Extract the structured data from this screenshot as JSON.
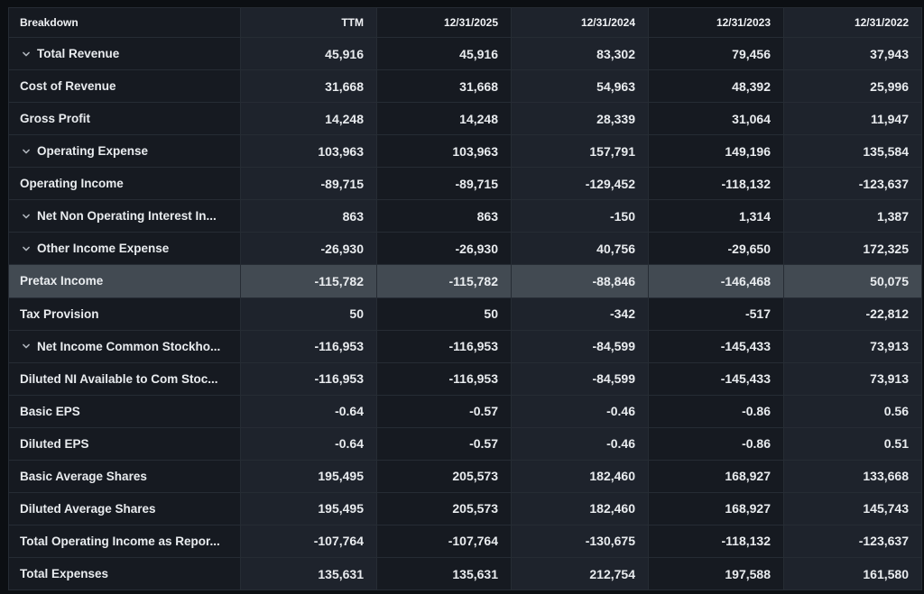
{
  "table": {
    "columns": [
      {
        "label": "Breakdown"
      },
      {
        "label": "TTM"
      },
      {
        "label": "12/31/2025"
      },
      {
        "label": "12/31/2024"
      },
      {
        "label": "12/31/2023"
      },
      {
        "label": "12/31/2022"
      }
    ],
    "rows": [
      {
        "label": "Total Revenue",
        "expandable": true,
        "highlighted": false,
        "values": [
          "45,916",
          "45,916",
          "83,302",
          "79,456",
          "37,943"
        ]
      },
      {
        "label": "Cost of Revenue",
        "expandable": false,
        "highlighted": false,
        "values": [
          "31,668",
          "31,668",
          "54,963",
          "48,392",
          "25,996"
        ]
      },
      {
        "label": "Gross Profit",
        "expandable": false,
        "highlighted": false,
        "values": [
          "14,248",
          "14,248",
          "28,339",
          "31,064",
          "11,947"
        ]
      },
      {
        "label": "Operating Expense",
        "expandable": true,
        "highlighted": false,
        "values": [
          "103,963",
          "103,963",
          "157,791",
          "149,196",
          "135,584"
        ]
      },
      {
        "label": "Operating Income",
        "expandable": false,
        "highlighted": false,
        "values": [
          "-89,715",
          "-89,715",
          "-129,452",
          "-118,132",
          "-123,637"
        ]
      },
      {
        "label": "Net Non Operating Interest In...",
        "expandable": true,
        "highlighted": false,
        "values": [
          "863",
          "863",
          "-150",
          "1,314",
          "1,387"
        ]
      },
      {
        "label": "Other Income Expense",
        "expandable": true,
        "highlighted": false,
        "values": [
          "-26,930",
          "-26,930",
          "40,756",
          "-29,650",
          "172,325"
        ]
      },
      {
        "label": "Pretax Income",
        "expandable": false,
        "highlighted": true,
        "values": [
          "-115,782",
          "-115,782",
          "-88,846",
          "-146,468",
          "50,075"
        ]
      },
      {
        "label": "Tax Provision",
        "expandable": false,
        "highlighted": false,
        "values": [
          "50",
          "50",
          "-342",
          "-517",
          "-22,812"
        ]
      },
      {
        "label": "Net Income Common Stockho...",
        "expandable": true,
        "highlighted": false,
        "values": [
          "-116,953",
          "-116,953",
          "-84,599",
          "-145,433",
          "73,913"
        ]
      },
      {
        "label": "Diluted NI Available to Com Stoc...",
        "expandable": false,
        "highlighted": false,
        "values": [
          "-116,953",
          "-116,953",
          "-84,599",
          "-145,433",
          "73,913"
        ]
      },
      {
        "label": "Basic EPS",
        "expandable": false,
        "highlighted": false,
        "values": [
          "-0.64",
          "-0.57",
          "-0.46",
          "-0.86",
          "0.56"
        ]
      },
      {
        "label": "Diluted EPS",
        "expandable": false,
        "highlighted": false,
        "values": [
          "-0.64",
          "-0.57",
          "-0.46",
          "-0.86",
          "0.51"
        ]
      },
      {
        "label": "Basic Average Shares",
        "expandable": false,
        "highlighted": false,
        "values": [
          "195,495",
          "205,573",
          "182,460",
          "168,927",
          "133,668"
        ]
      },
      {
        "label": "Diluted Average Shares",
        "expandable": false,
        "highlighted": false,
        "values": [
          "195,495",
          "205,573",
          "182,460",
          "168,927",
          "145,743"
        ]
      },
      {
        "label": "Total Operating Income as Repor...",
        "expandable": false,
        "highlighted": false,
        "values": [
          "-107,764",
          "-107,764",
          "-130,675",
          "-118,132",
          "-123,637"
        ]
      },
      {
        "label": "Total Expenses",
        "expandable": false,
        "highlighted": false,
        "values": [
          "135,631",
          "135,631",
          "212,754",
          "197,588",
          "161,580"
        ]
      }
    ]
  },
  "icons": {
    "expand_chevron": "chevron-down-icon"
  },
  "colors": {
    "page_background": "#0c0f13",
    "cell_dark": "#161a21",
    "cell_light": "#1e232c",
    "row_highlight": "#424a52",
    "border": "#262c34",
    "text": "#e9ecef"
  }
}
